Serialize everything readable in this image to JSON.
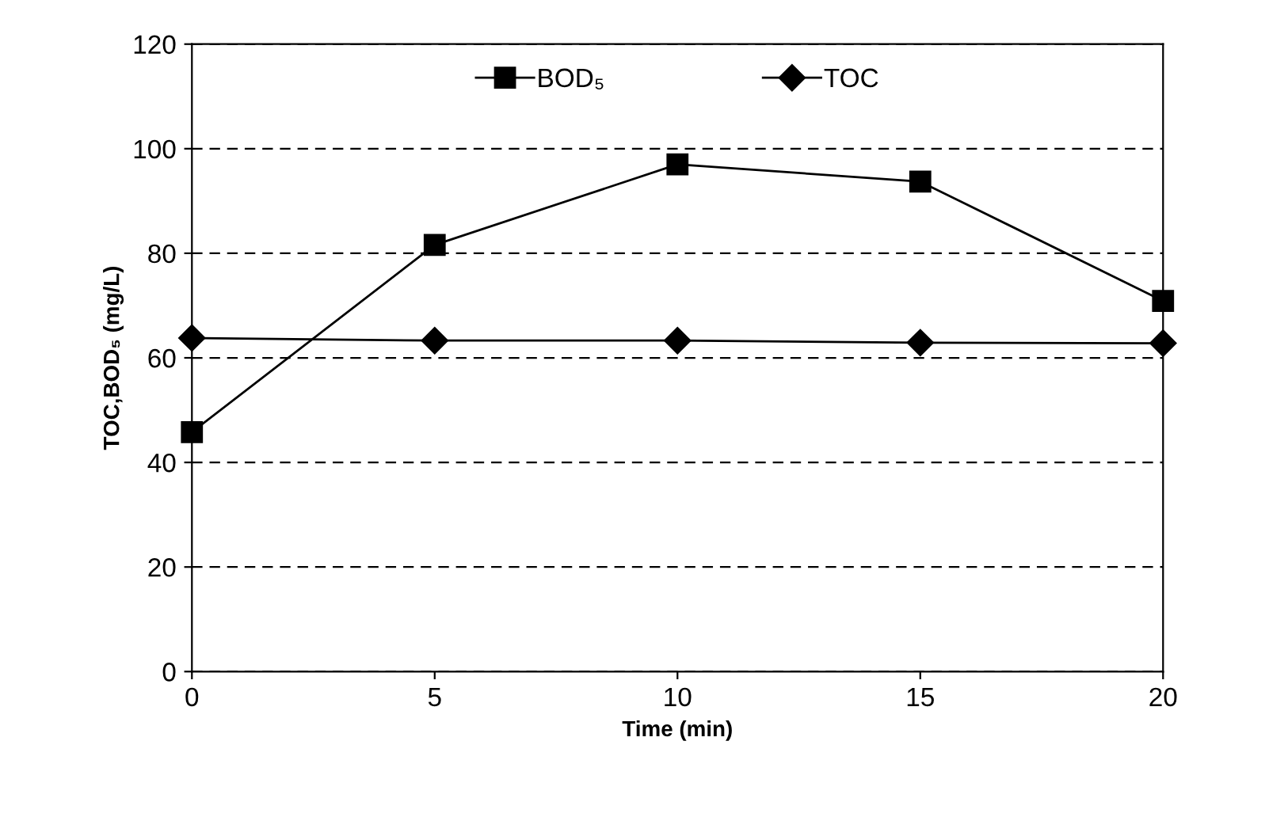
{
  "chart_data": {
    "type": "line",
    "xlabel": "Time (min)",
    "ylabel": "TOC,BOD₅ (mg/L)",
    "x": [
      0,
      5,
      10,
      15,
      20
    ],
    "series": [
      {
        "name": "BOD₅",
        "color": "#000000",
        "marker": "square",
        "values": [
          45.8,
          81.6,
          97.0,
          93.7,
          70.9
        ]
      },
      {
        "name": "TOC",
        "color": "#000000",
        "marker": "diamond",
        "values": [
          63.8,
          63.3,
          63.3,
          62.9,
          62.8
        ]
      }
    ],
    "xlim": [
      0,
      20
    ],
    "xticks": [
      0,
      5,
      10,
      15,
      20
    ],
    "ylim": [
      0,
      120
    ],
    "yticks": [
      0,
      20,
      40,
      60,
      80,
      100,
      120
    ],
    "grid": "y",
    "legend": "top",
    "line_style": "solid"
  }
}
